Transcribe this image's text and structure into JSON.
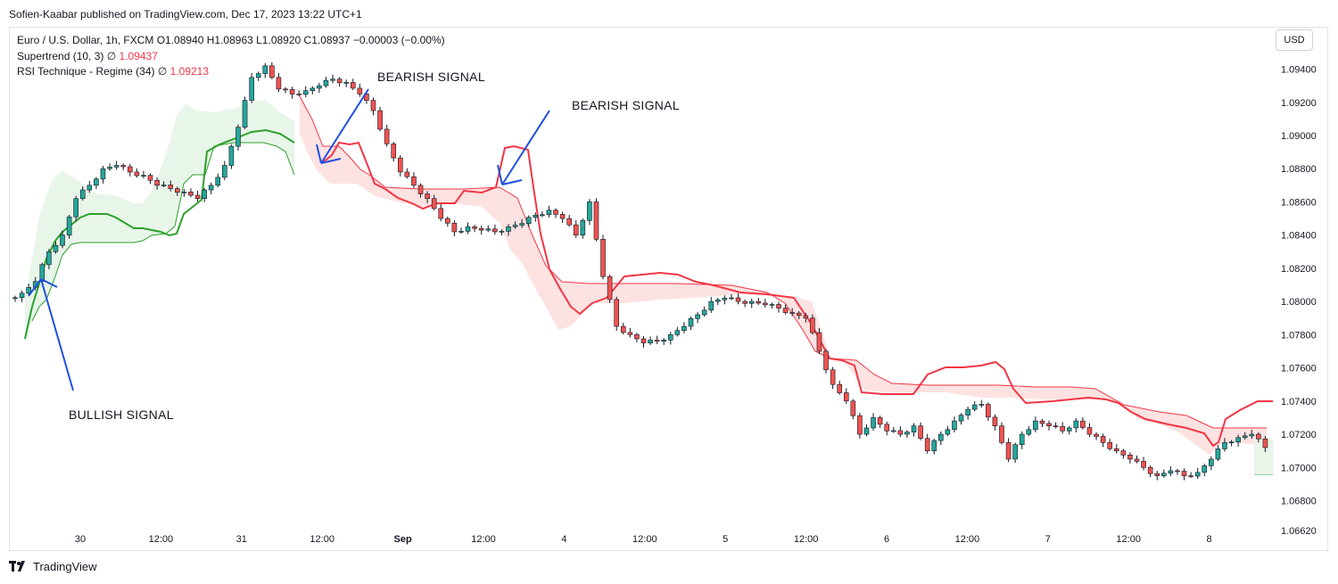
{
  "header": {
    "published": "Sofien-Kaabar published on TradingView.com, Dec 17, 2023 13:22 UTC+1"
  },
  "legend": {
    "symbol_line": "Euro / U.S. Dollar, 1h, FXCM  O1.08940  H1.08963  L1.08920  C1.08937  −0.00003 (−0.00%)",
    "supertrend_label": "Supertrend (10, 3)  ∅",
    "supertrend_value": "1.09437",
    "rsi_label": "RSI Technique - Regime (34)  ∅",
    "rsi_value": "1.09213"
  },
  "currency_button": "USD",
  "footer": {
    "brand": "TradingView",
    "logo_icon": "tradingview-logo-icon"
  },
  "annotations": {
    "bullish": "BULLISH SIGNAL",
    "bearish1": "BEARISH SIGNAL",
    "bearish2": "BEARISH SIGNAL"
  },
  "colors": {
    "up": "#26a69a",
    "down": "#ef5350",
    "supertrend_up": "#2ca02c",
    "supertrend_down": "#f23645",
    "arrow": "#1f4fe0",
    "fill_up": "#e8f5e9",
    "fill_down": "#fde2e2"
  },
  "chart_data": {
    "type": "candlestick",
    "symbol": "EUR/USD",
    "timeframe": "1h",
    "ylim": [
      1.0662,
      1.0965
    ],
    "y_ticks": [
      "1.09400",
      "1.09200",
      "1.09000",
      "1.08800",
      "1.08600",
      "1.08400",
      "1.08200",
      "1.08000",
      "1.07800",
      "1.07600",
      "1.07400",
      "1.07200",
      "1.07000",
      "1.06800",
      "1.06620"
    ],
    "x_ticks": [
      "30",
      "12:00",
      "31",
      "12:00",
      "Sep",
      "12:00",
      "4",
      "12:00",
      "5",
      "12:00",
      "6",
      "12:00",
      "7",
      "12:00",
      "8"
    ],
    "close_series": [
      1.0805,
      1.0812,
      1.083,
      1.084,
      1.0862,
      1.087,
      1.088,
      1.0882,
      1.0878,
      1.0876,
      1.087,
      1.0868,
      1.0866,
      1.0862,
      1.087,
      1.0882,
      1.0905,
      1.0935,
      1.0942,
      1.0928,
      1.0925,
      1.0927,
      1.093,
      1.0934,
      1.0932,
      1.0925,
      1.0915,
      1.0895,
      1.0878,
      1.087,
      1.0862,
      1.085,
      1.0842,
      1.0845,
      1.0843,
      1.0842,
      1.0845,
      1.0847,
      1.0852,
      1.0855,
      1.085,
      1.084,
      1.086,
      1.0815,
      1.0785,
      1.078,
      1.0775,
      1.0776,
      1.078,
      1.0785,
      1.0792,
      1.08,
      1.0802,
      1.08,
      1.08,
      1.0798,
      1.0796,
      1.0793,
      1.079,
      1.077,
      1.075,
      1.074,
      1.072,
      1.073,
      1.0722,
      1.072,
      1.0725,
      1.071,
      1.072,
      1.0728,
      1.0735,
      1.0738,
      1.0725,
      1.0705,
      1.072,
      1.0728,
      1.0725,
      1.0722,
      1.0728,
      1.072,
      1.0715,
      1.071,
      1.0705,
      1.07,
      1.0695,
      1.0698,
      1.0695,
      1.0697,
      1.0705,
      1.0715,
      1.0718,
      1.072,
      1.0712
    ],
    "annotations": [
      "BULLISH SIGNAL",
      "BEARISH SIGNAL",
      "BEARISH SIGNAL"
    ],
    "series": [
      {
        "name": "Supertrend (10, 3)",
        "last_value": 1.09437
      },
      {
        "name": "RSI Technique - Regime (34)",
        "last_value": 1.09213
      }
    ]
  }
}
